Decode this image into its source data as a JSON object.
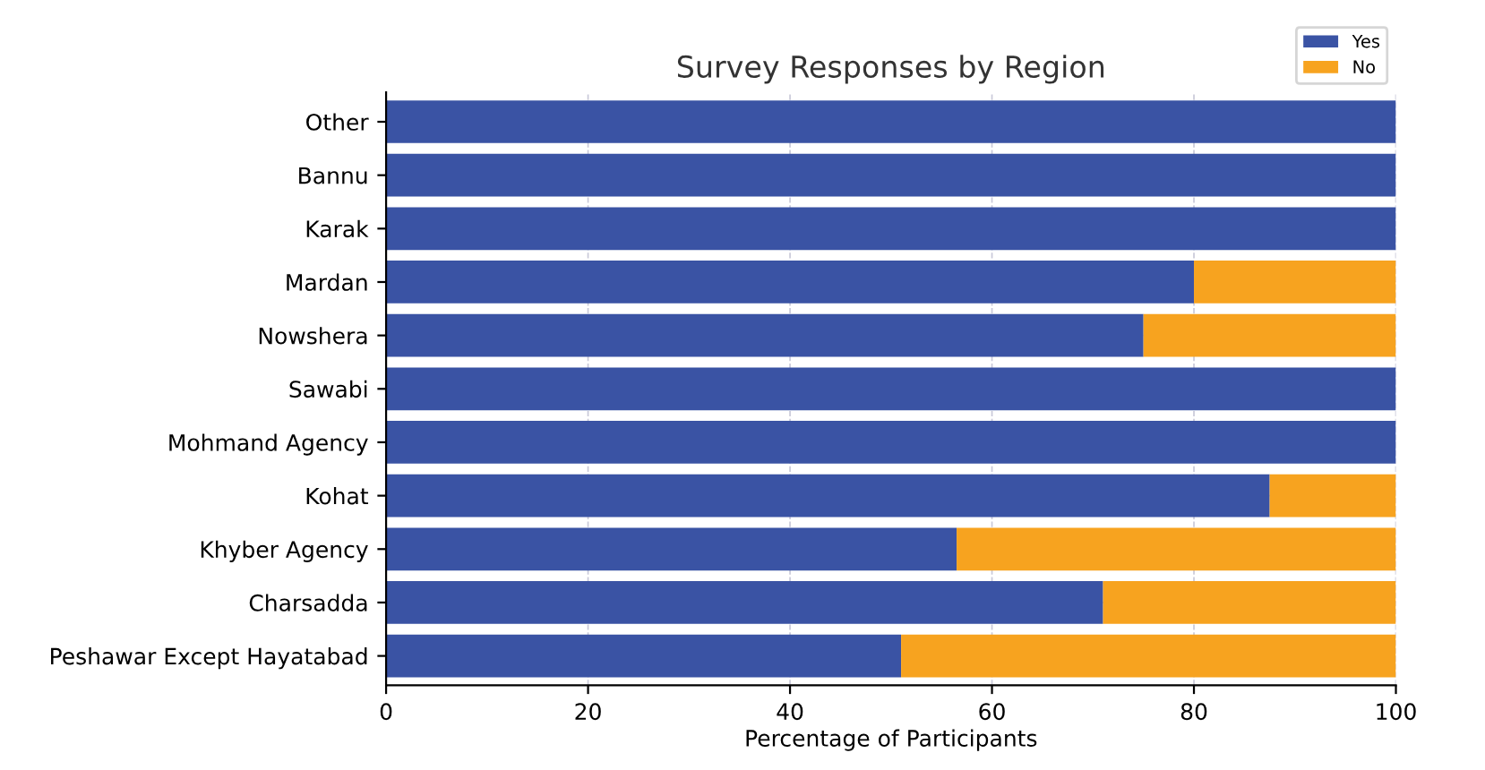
{
  "chart_data": {
    "type": "bar",
    "orientation": "horizontal",
    "stacked": true,
    "title": "Survey Responses by Region",
    "xlabel": "Percentage of Participants",
    "categories": [
      "Other",
      "Bannu",
      "Karak",
      "Mardan",
      "Nowshera",
      "Sawabi",
      "Mohmand Agency",
      "Kohat",
      "Khyber Agency",
      "Charsadda",
      "Peshawar Except Hayatabad"
    ],
    "series": [
      {
        "name": "Yes",
        "color": "#3a53a4",
        "values": [
          100,
          100,
          100,
          80,
          75,
          100,
          100,
          87.5,
          56.5,
          71,
          51
        ]
      },
      {
        "name": "No",
        "color": "#f7a31f",
        "values": [
          0,
          0,
          0,
          20,
          25,
          0,
          0,
          12.5,
          43.5,
          29,
          49
        ]
      }
    ],
    "xlim": [
      0,
      100
    ],
    "xticks": [
      0,
      20,
      40,
      60,
      80,
      100
    ],
    "grid": true,
    "legend": "top right"
  }
}
